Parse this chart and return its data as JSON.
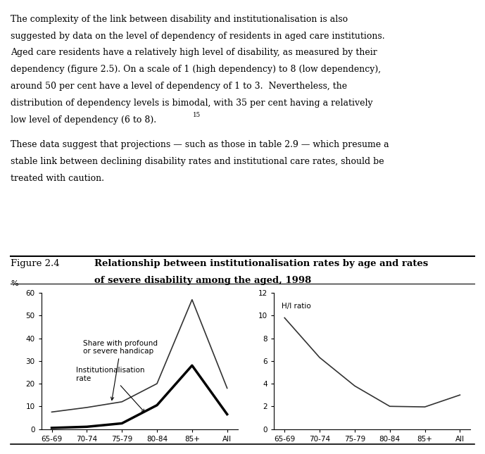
{
  "figure_label": "Figure 2.4",
  "title_line1": "Relationship between institutionalisation rates by age and rates",
  "title_line2": "of severe disability among the aged, 1998",
  "x_categories": [
    "65-69",
    "70-74",
    "75-79",
    "80-84",
    "85+",
    "All"
  ],
  "left_ylabel": "%",
  "left_ylim": [
    0,
    60
  ],
  "left_yticks": [
    0,
    10,
    20,
    30,
    40,
    50,
    60
  ],
  "handicap_values": [
    7.5,
    9.5,
    12.0,
    20.0,
    57.0,
    18.0
  ],
  "institution_values": [
    0.5,
    1.0,
    2.5,
    10.5,
    28.0,
    6.5
  ],
  "right_ylim": [
    0,
    12
  ],
  "right_yticks": [
    0,
    2,
    4,
    6,
    8,
    10,
    12
  ],
  "hi_ratio_values": [
    9.8,
    6.3,
    3.8,
    2.0,
    1.95,
    3.0
  ],
  "line_color_thin": "#333333",
  "line_color_thick": "#000000",
  "background_color": "#ffffff",
  "label_handicap": "Share with profound\nor severe handicap",
  "label_institution": "Institutionalisation\nrate",
  "label_hi": "H/I ratio",
  "para1_lines": [
    "The complexity of the link between disability and institutionalisation is also",
    "suggested by data on the level of dependency of residents in aged care institutions.",
    "Aged care residents have a relatively high level of disability, as measured by their",
    "dependency (figure 2.5). On a scale of 1 (high dependency) to 8 (low dependency),",
    "around 50 per cent have a level of dependency of 1 to 3.  Nevertheless, the",
    "distribution of dependency levels is bimodal, with 35 per cent having a relatively",
    "low level of dependency (6 to 8)."
  ],
  "para2_lines": [
    "These data suggest that projections — such as those in table 2.9 — which presume a",
    "stable link between declining disability rates and institutional care rates, should be",
    "treated with caution."
  ],
  "text_fontsize": 9.0,
  "title_fontsize": 9.5,
  "tick_fontsize": 7.5,
  "annotation_fontsize": 7.5
}
